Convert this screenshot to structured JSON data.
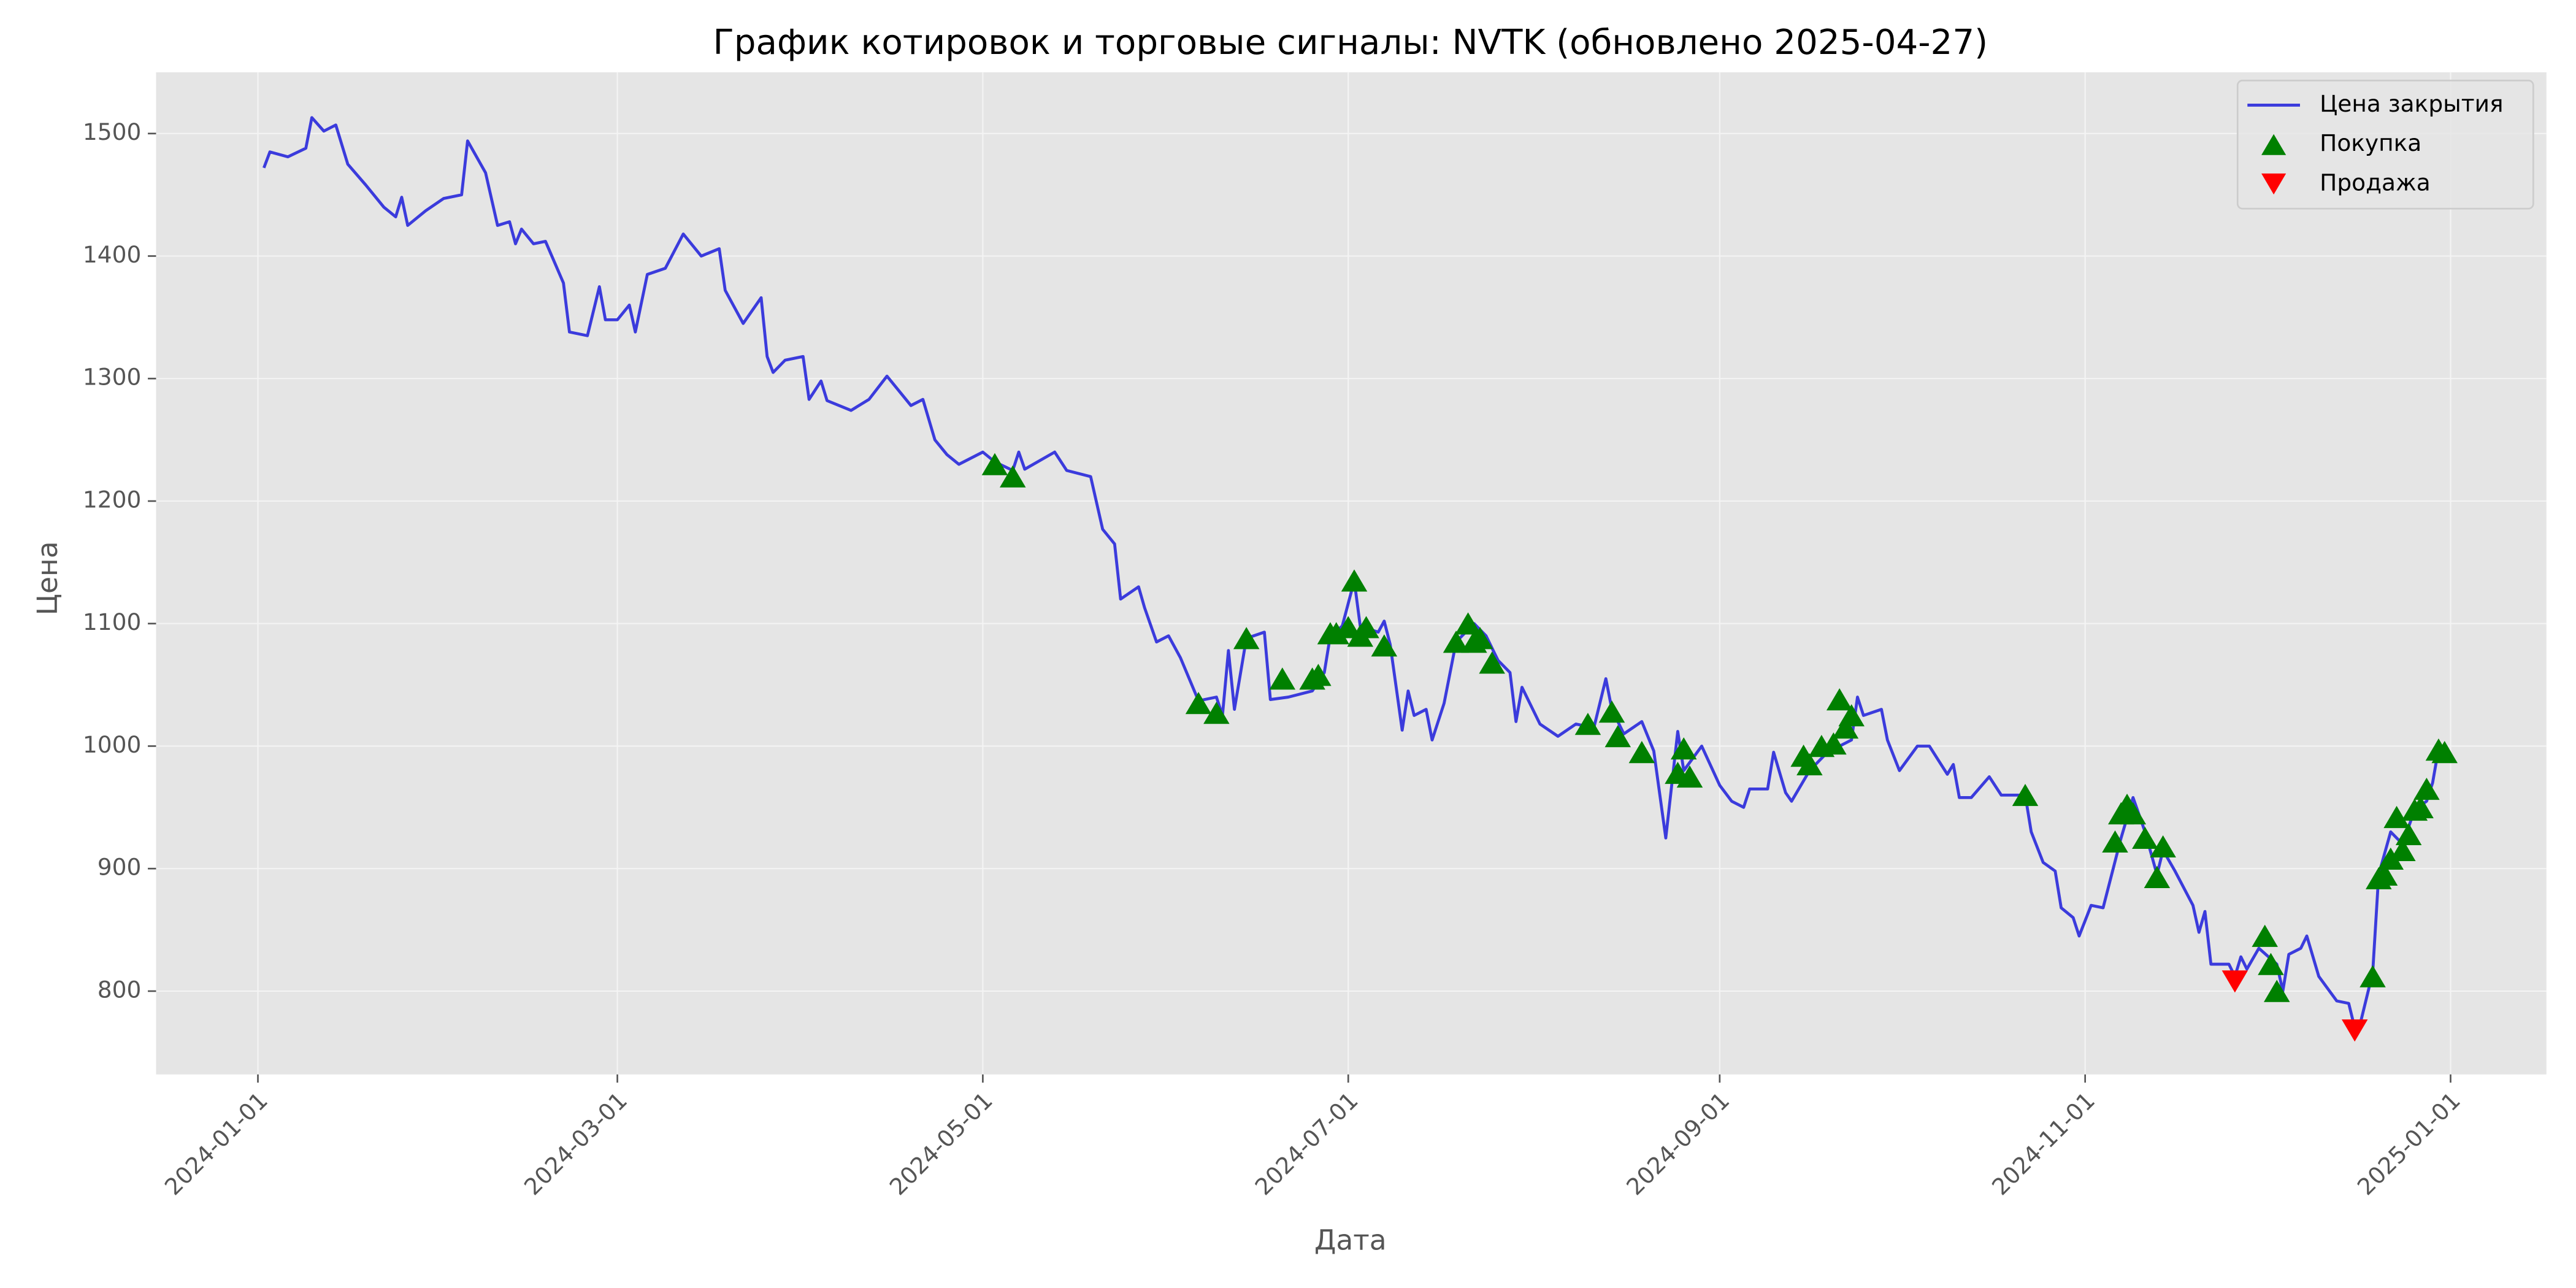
{
  "chart_data": {
    "type": "line",
    "title": "График котировок и торговые сигналы: NVTK (обновлено 2025-04-27)",
    "xlabel": "Дата",
    "ylabel": "Цена",
    "xlim": [
      "2023-12-15",
      "2025-01-17"
    ],
    "xticks": [
      "2024-01-01",
      "2024-03-01",
      "2024-05-01",
      "2024-07-01",
      "2024-09-01",
      "2024-11-01",
      "2025-01-01"
    ],
    "ylim": [
      732,
      1550
    ],
    "yticks": [
      800,
      900,
      1000,
      1100,
      1200,
      1300,
      1400,
      1500
    ],
    "grid": true,
    "legend": "upper right",
    "series": [
      {
        "name": "Цена закрытия",
        "type": "line",
        "color": "#3b3bdc",
        "x": [
          "2024-01-02",
          "2024-01-03",
          "2024-01-06",
          "2024-01-09",
          "2024-01-10",
          "2024-01-12",
          "2024-01-14",
          "2024-01-16",
          "2024-01-19",
          "2024-01-22",
          "2024-01-24",
          "2024-01-25",
          "2024-01-26",
          "2024-01-29",
          "2024-02-01",
          "2024-02-04",
          "2024-02-05",
          "2024-02-08",
          "2024-02-10",
          "2024-02-12",
          "2024-02-13",
          "2024-02-14",
          "2024-02-16",
          "2024-02-18",
          "2024-02-21",
          "2024-02-22",
          "2024-02-25",
          "2024-02-27",
          "2024-02-28",
          "2024-03-01",
          "2024-03-03",
          "2024-03-04",
          "2024-03-06",
          "2024-03-09",
          "2024-03-12",
          "2024-03-15",
          "2024-03-18",
          "2024-03-19",
          "2024-03-22",
          "2024-03-25",
          "2024-03-26",
          "2024-03-27",
          "2024-03-29",
          "2024-04-01",
          "2024-04-02",
          "2024-04-04",
          "2024-04-05",
          "2024-04-09",
          "2024-04-12",
          "2024-04-15",
          "2024-04-19",
          "2024-04-21",
          "2024-04-23",
          "2024-04-25",
          "2024-04-27",
          "2024-05-01",
          "2024-05-03",
          "2024-05-06",
          "2024-05-07",
          "2024-05-08",
          "2024-05-13",
          "2024-05-15",
          "2024-05-19",
          "2024-05-21",
          "2024-05-23",
          "2024-05-24",
          "2024-05-27",
          "2024-05-28",
          "2024-05-30",
          "2024-06-01",
          "2024-06-03",
          "2024-06-06",
          "2024-06-09",
          "2024-06-10",
          "2024-06-11",
          "2024-06-12",
          "2024-06-14",
          "2024-06-17",
          "2024-06-18",
          "2024-06-21",
          "2024-06-25",
          "2024-06-27",
          "2024-06-28",
          "2024-06-30",
          "2024-07-02",
          "2024-07-03",
          "2024-07-06",
          "2024-07-07",
          "2024-07-08",
          "2024-07-10",
          "2024-07-11",
          "2024-07-12",
          "2024-07-14",
          "2024-07-15",
          "2024-07-17",
          "2024-07-19",
          "2024-07-22",
          "2024-07-24",
          "2024-07-26",
          "2024-07-28",
          "2024-07-29",
          "2024-07-30",
          "2024-08-02",
          "2024-08-05",
          "2024-08-08",
          "2024-08-11",
          "2024-08-13",
          "2024-08-14",
          "2024-08-16",
          "2024-08-19",
          "2024-08-21",
          "2024-08-23",
          "2024-08-25",
          "2024-08-26",
          "2024-08-29",
          "2024-09-01",
          "2024-09-03",
          "2024-09-05",
          "2024-09-06",
          "2024-09-09",
          "2024-09-10",
          "2024-09-12",
          "2024-09-13",
          "2024-09-16",
          "2024-09-19",
          "2024-09-23",
          "2024-09-24",
          "2024-09-25",
          "2024-09-28",
          "2024-09-29",
          "2024-10-01",
          "2024-10-04",
          "2024-10-06",
          "2024-10-09",
          "2024-10-10",
          "2024-10-11",
          "2024-10-13",
          "2024-10-16",
          "2024-10-18",
          "2024-10-22",
          "2024-10-23",
          "2024-10-25",
          "2024-10-27",
          "2024-10-28",
          "2024-10-30",
          "2024-10-31",
          "2024-11-02",
          "2024-11-04",
          "2024-11-07",
          "2024-11-09",
          "2024-11-11",
          "2024-11-13",
          "2024-11-14",
          "2024-11-16",
          "2024-11-19",
          "2024-11-20",
          "2024-11-21",
          "2024-11-22",
          "2024-11-25",
          "2024-11-26",
          "2024-11-27",
          "2024-11-28",
          "2024-11-30",
          "2024-12-03",
          "2024-12-04",
          "2024-12-05",
          "2024-12-07",
          "2024-12-08",
          "2024-12-10",
          "2024-12-13",
          "2024-12-15",
          "2024-12-16",
          "2024-12-17",
          "2024-12-19",
          "2024-12-20",
          "2024-12-22",
          "2024-12-24",
          "2024-12-26",
          "2024-12-28",
          "2024-12-29",
          "2024-12-30",
          "2024-12-31"
        ],
        "values": [
          1472,
          1485,
          1481,
          1488,
          1513,
          1502,
          1507,
          1475,
          1458,
          1440,
          1432,
          1448,
          1425,
          1437,
          1447,
          1450,
          1494,
          1468,
          1425,
          1428,
          1410,
          1422,
          1410,
          1412,
          1378,
          1338,
          1335,
          1375,
          1348,
          1348,
          1360,
          1338,
          1385,
          1390,
          1418,
          1400,
          1406,
          1372,
          1345,
          1366,
          1318,
          1305,
          1315,
          1318,
          1283,
          1298,
          1282,
          1274,
          1283,
          1302,
          1278,
          1283,
          1250,
          1238,
          1230,
          1240,
          1232,
          1225,
          1240,
          1226,
          1240,
          1225,
          1220,
          1177,
          1165,
          1120,
          1130,
          1113,
          1085,
          1090,
          1072,
          1037,
          1040,
          1025,
          1078,
          1030,
          1088,
          1093,
          1038,
          1040,
          1045,
          1060,
          1090,
          1098,
          1135,
          1098,
          1093,
          1102,
          1083,
          1013,
          1045,
          1025,
          1030,
          1005,
          1035,
          1085,
          1100,
          1090,
          1070,
          1060,
          1020,
          1048,
          1018,
          1008,
          1018,
          1015,
          1055,
          1030,
          1010,
          1020,
          996,
          925,
          1012,
          980,
          1000,
          968,
          955,
          950,
          965,
          965,
          995,
          962,
          955,
          980,
          995,
          1005,
          1040,
          1025,
          1030,
          1005,
          980,
          1000,
          1000,
          977,
          985,
          958,
          958,
          975,
          960,
          960,
          930,
          905,
          898,
          868,
          860,
          845,
          870,
          868,
          925,
          958,
          930,
          895,
          915,
          898,
          870,
          848,
          865,
          822,
          822,
          812,
          828,
          818,
          835,
          822,
          800,
          830,
          835,
          845,
          812,
          792,
          790,
          770,
          775,
          815,
          895,
          930,
          920,
          948,
          955,
          970,
          998,
          998
        ]
      },
      {
        "name": "Покупка",
        "type": "scatter",
        "marker": "^",
        "color": "#008000",
        "x": [
          "2024-05-03",
          "2024-05-06",
          "2024-06-06",
          "2024-06-09",
          "2024-06-14",
          "2024-06-20",
          "2024-06-25",
          "2024-06-26",
          "2024-06-28",
          "2024-06-29",
          "2024-07-01",
          "2024-07-02",
          "2024-07-03",
          "2024-07-04",
          "2024-07-07",
          "2024-07-19",
          "2024-07-21",
          "2024-07-22",
          "2024-07-23",
          "2024-07-25",
          "2024-08-10",
          "2024-08-14",
          "2024-08-15",
          "2024-08-19",
          "2024-08-25",
          "2024-08-26",
          "2024-08-27",
          "2024-09-15",
          "2024-09-16",
          "2024-09-18",
          "2024-09-20",
          "2024-09-21",
          "2024-09-22",
          "2024-09-23",
          "2024-10-22",
          "2024-11-06",
          "2024-11-07",
          "2024-11-08",
          "2024-11-09",
          "2024-11-11",
          "2024-11-13",
          "2024-11-14",
          "2024-12-01",
          "2024-12-02",
          "2024-12-03",
          "2024-12-19",
          "2024-12-20",
          "2024-12-21",
          "2024-12-22",
          "2024-12-23",
          "2024-12-24",
          "2024-12-25",
          "2024-12-26",
          "2024-12-27",
          "2024-12-28",
          "2024-12-30",
          "2024-12-31"
        ],
        "values": [
          1230,
          1220,
          1035,
          1027,
          1088,
          1055,
          1055,
          1058,
          1092,
          1092,
          1097,
          1135,
          1090,
          1097,
          1082,
          1085,
          1100,
          1085,
          1088,
          1068,
          1018,
          1028,
          1008,
          995,
          978,
          998,
          975,
          992,
          985,
          1000,
          1002,
          1038,
          1015,
          1025,
          960,
          922,
          945,
          952,
          945,
          925,
          893,
          918,
          845,
          822,
          800,
          812,
          892,
          895,
          908,
          942,
          915,
          928,
          948,
          950,
          965,
          997,
          995
        ]
      },
      {
        "name": "Продажа",
        "type": "scatter",
        "marker": "v",
        "color": "#ff0000",
        "x": [
          "2024-11-26",
          "2024-12-16"
        ],
        "values": [
          808,
          768
        ]
      }
    ]
  }
}
